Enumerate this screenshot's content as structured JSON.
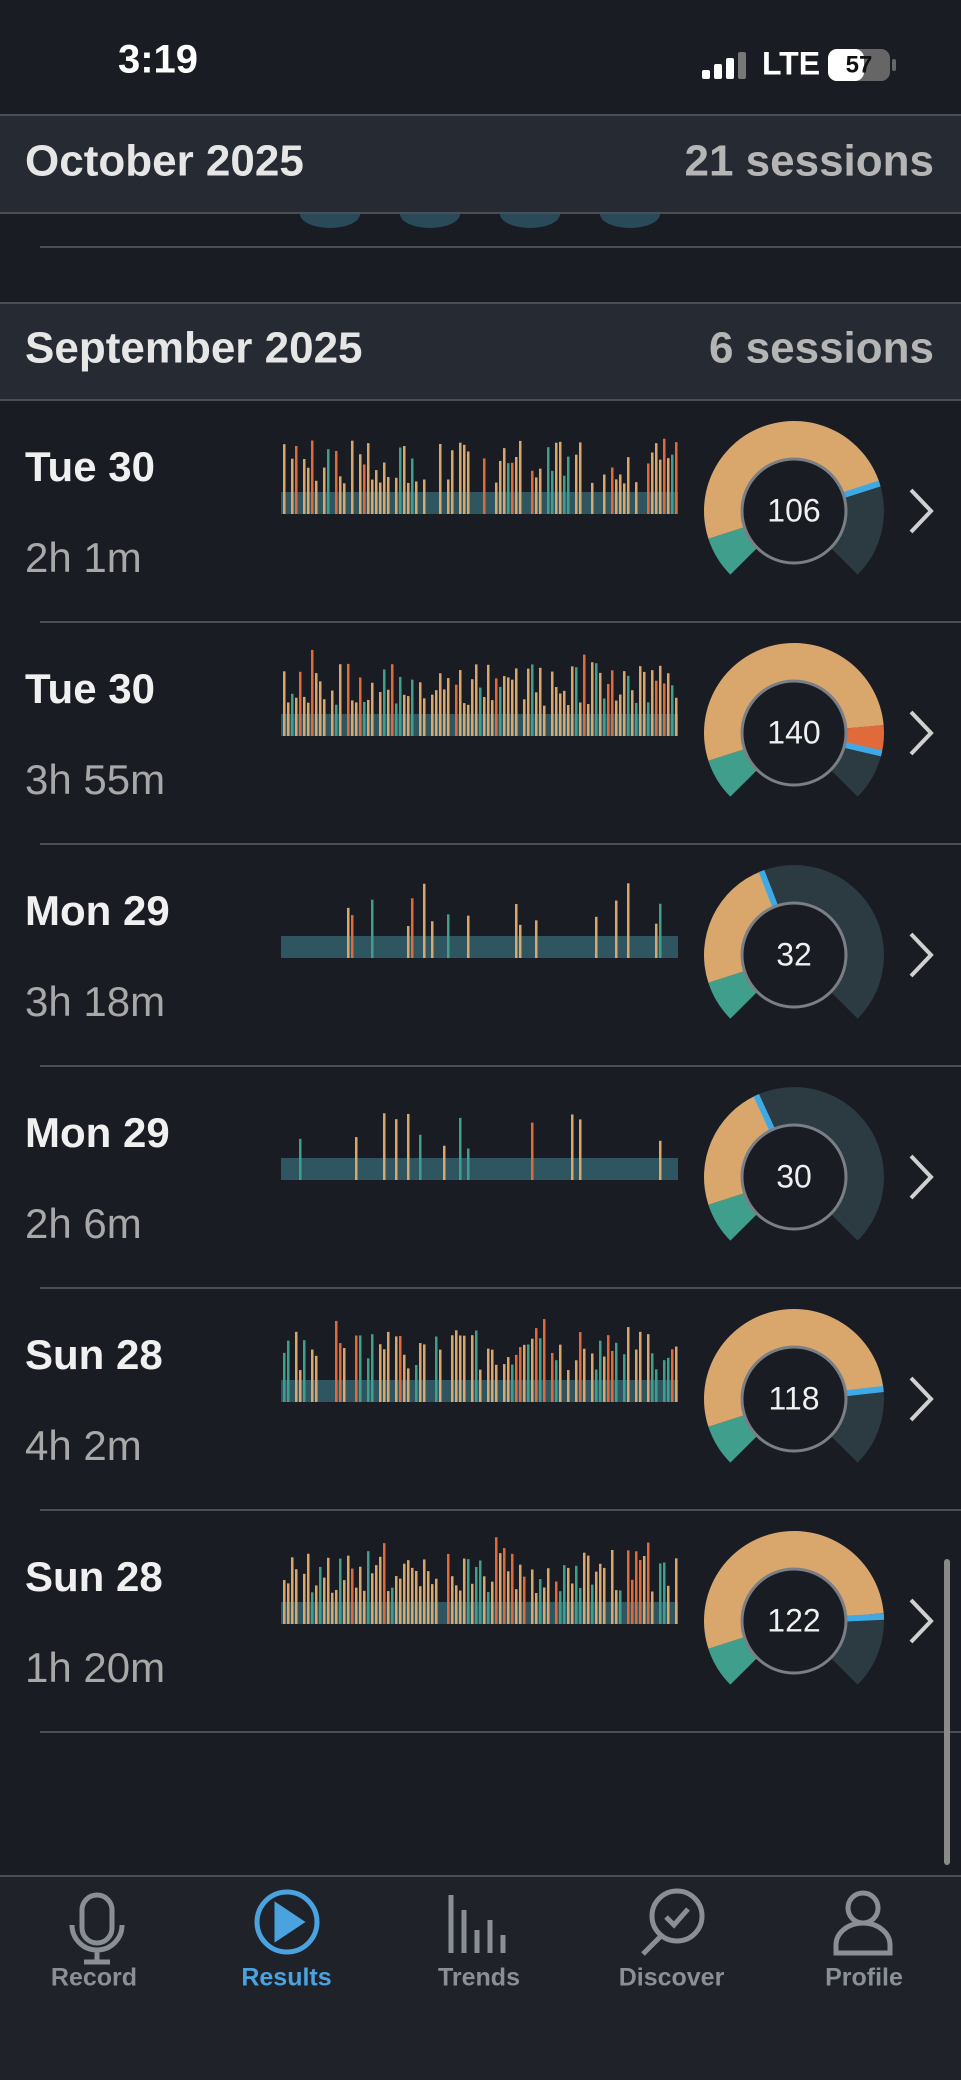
{
  "status": {
    "time": "3:19",
    "network": "LTE",
    "battery": "57"
  },
  "months": [
    {
      "title": "October 2025",
      "sessions": "21 sessions"
    },
    {
      "title": "September 2025",
      "sessions": "6 sessions"
    }
  ],
  "sessions": [
    {
      "day": "Tue 30",
      "duration": "2h 1m",
      "score": 106
    },
    {
      "day": "Tue 30",
      "duration": "3h 55m",
      "score": 140
    },
    {
      "day": "Mon 29",
      "duration": "3h 18m",
      "score": 32
    },
    {
      "day": "Mon 29",
      "duration": "2h 6m",
      "score": 30
    },
    {
      "day": "Sun 28",
      "duration": "4h 2m",
      "score": 118
    },
    {
      "day": "Sun 28",
      "duration": "1h 20m",
      "score": 122
    }
  ],
  "tabs": [
    {
      "label": "Record"
    },
    {
      "label": "Results"
    },
    {
      "label": "Trends"
    },
    {
      "label": "Discover"
    },
    {
      "label": "Profile"
    }
  ]
}
